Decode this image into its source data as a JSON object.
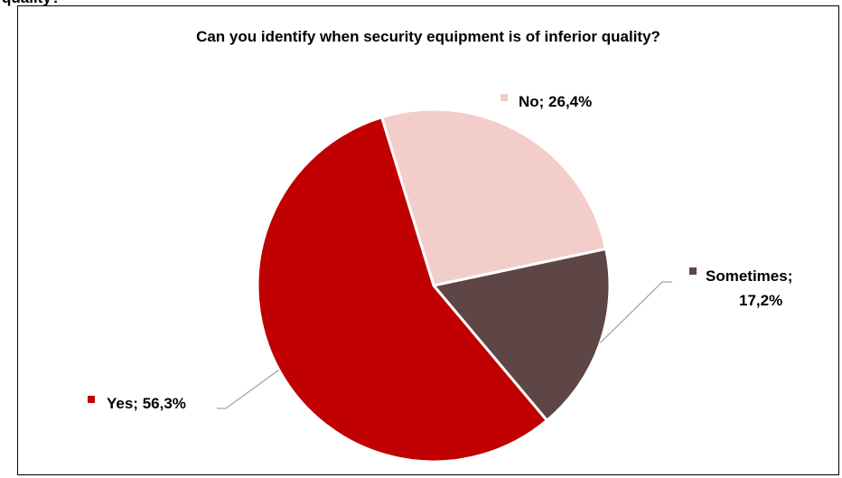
{
  "overflow_text": "quality?",
  "chart_data": {
    "type": "pie",
    "title": "Can you identify when security equipment is of inferior quality?",
    "slices": [
      {
        "label": "No",
        "value": 26.4,
        "display": "No; 26,4%",
        "color": "#F2CDCA"
      },
      {
        "label": "Sometimes",
        "value": 17.2,
        "display_line1": "Sometimes;",
        "display_line2": "17,2%",
        "color": "#5E4646"
      },
      {
        "label": "Yes",
        "value": 56.3,
        "display": "Yes; 56,3%",
        "color": "#C00000"
      }
    ],
    "legend": "none"
  }
}
